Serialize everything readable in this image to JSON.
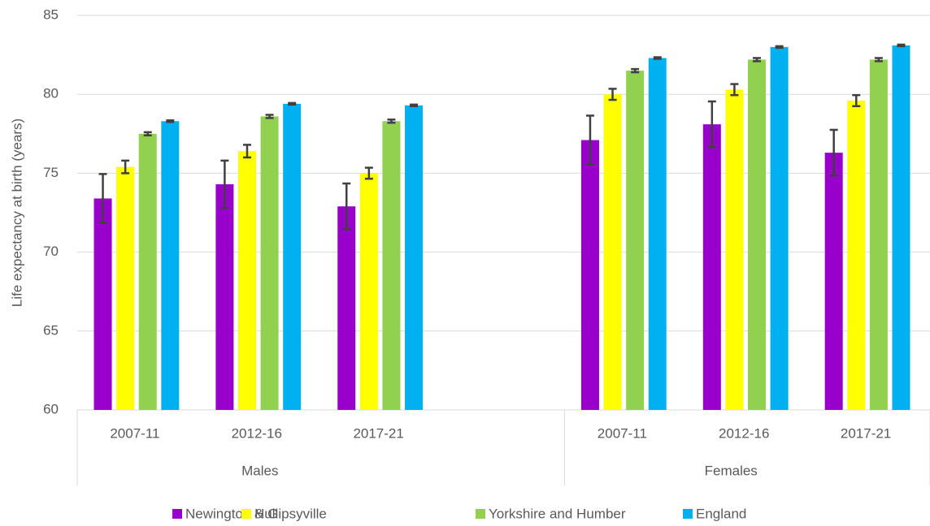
{
  "chart_data": {
    "type": "bar",
    "y_label": "Life expectancy at birth (years)",
    "categories": [
      "2007-11",
      "2012-16",
      "2017-21",
      null,
      "2007-11",
      "2012-16",
      "2017-21"
    ],
    "groups": [
      {
        "label": "Males",
        "count": 4
      },
      {
        "label": "Females",
        "count": 3
      }
    ],
    "series": [
      {
        "name": "Newington & Gipsyville",
        "color": "#9900cc",
        "values": [
          73.4,
          74.3,
          72.9,
          null,
          77.1,
          78.1,
          76.3
        ],
        "errors": [
          1.55,
          1.5,
          1.45,
          null,
          1.55,
          1.45,
          1.45
        ]
      },
      {
        "name": "Hull",
        "color": "#ffff00",
        "values": [
          75.4,
          76.4,
          75.0,
          null,
          80.0,
          80.3,
          79.6
        ],
        "errors": [
          0.4,
          0.4,
          0.35,
          null,
          0.35,
          0.35,
          0.35
        ]
      },
      {
        "name": "Yorkshire and Humber",
        "color": "#92d050",
        "values": [
          77.5,
          78.6,
          78.3,
          null,
          81.5,
          82.2,
          82.2
        ],
        "errors": [
          0.1,
          0.1,
          0.1,
          null,
          0.1,
          0.1,
          0.1
        ]
      },
      {
        "name": "England",
        "color": "#00b0f0",
        "values": [
          78.3,
          79.4,
          79.3,
          null,
          82.3,
          83.0,
          83.1
        ],
        "errors": [
          0.05,
          0.05,
          0.05,
          null,
          0.05,
          0.05,
          0.05
        ]
      }
    ],
    "error_color": "#404040",
    "ylim": [
      60,
      85
    ],
    "yticks": [
      60,
      65,
      70,
      75,
      80,
      85
    ],
    "grid": true,
    "legend": "bottom"
  }
}
